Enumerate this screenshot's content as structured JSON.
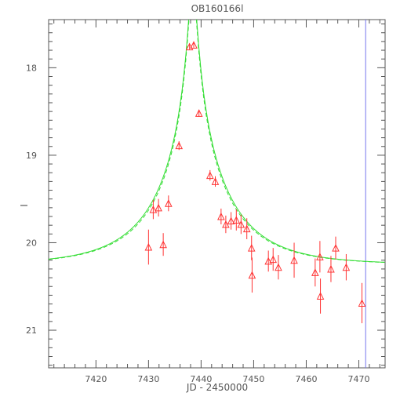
{
  "chart_data": {
    "type": "scatter",
    "title": "OB160166l",
    "xlabel": "JD - 2450000",
    "ylabel": "I",
    "xlim": [
      7411,
      7475
    ],
    "ylim": [
      21.43,
      17.45
    ],
    "y_inverted": true,
    "x_ticks": [
      7420,
      7430,
      7440,
      7450,
      7460,
      7470
    ],
    "x_tick_labels": [
      "7420",
      "7430",
      "7440",
      "7450",
      "7460",
      "7470"
    ],
    "y_ticks": [
      18,
      19,
      20,
      21
    ],
    "y_tick_labels": [
      "18",
      "19",
      "20",
      "21"
    ],
    "grid": false,
    "legend": "none",
    "vertical_marker_x": 7471.3,
    "series": [
      {
        "kind": "points",
        "marker": "triangle",
        "color": "#ff3333",
        "points": [
          {
            "x": 7430.0,
            "y": 20.05,
            "err": 0.2
          },
          {
            "x": 7430.9,
            "y": 19.62,
            "err": 0.11
          },
          {
            "x": 7431.9,
            "y": 19.6,
            "err": 0.1
          },
          {
            "x": 7432.8,
            "y": 20.02,
            "err": 0.13
          },
          {
            "x": 7433.8,
            "y": 19.55,
            "err": 0.09
          },
          {
            "x": 7435.8,
            "y": 18.89,
            "err": 0.05
          },
          {
            "x": 7437.8,
            "y": 17.76,
            "err": 0.03
          },
          {
            "x": 7438.6,
            "y": 17.74,
            "err": 0.03
          },
          {
            "x": 7439.6,
            "y": 18.52,
            "err": 0.04
          },
          {
            "x": 7441.7,
            "y": 19.23,
            "err": 0.06
          },
          {
            "x": 7442.7,
            "y": 19.3,
            "err": 0.06
          },
          {
            "x": 7443.8,
            "y": 19.7,
            "err": 0.09
          },
          {
            "x": 7444.7,
            "y": 19.79,
            "err": 0.1
          },
          {
            "x": 7445.7,
            "y": 19.75,
            "err": 0.1
          },
          {
            "x": 7446.7,
            "y": 19.74,
            "err": 0.12
          },
          {
            "x": 7447.6,
            "y": 19.79,
            "err": 0.11
          },
          {
            "x": 7448.7,
            "y": 19.84,
            "err": 0.12
          },
          {
            "x": 7449.6,
            "y": 20.06,
            "err": 0.14
          },
          {
            "x": 7449.7,
            "y": 20.37,
            "err": 0.2
          },
          {
            "x": 7452.8,
            "y": 20.21,
            "err": 0.12
          },
          {
            "x": 7453.7,
            "y": 20.19,
            "err": 0.13
          },
          {
            "x": 7454.7,
            "y": 20.28,
            "err": 0.14
          },
          {
            "x": 7457.7,
            "y": 20.2,
            "err": 0.2
          },
          {
            "x": 7461.7,
            "y": 20.34,
            "err": 0.16
          },
          {
            "x": 7462.6,
            "y": 20.16,
            "err": 0.18
          },
          {
            "x": 7462.7,
            "y": 20.61,
            "err": 0.2
          },
          {
            "x": 7464.7,
            "y": 20.3,
            "err": 0.15
          },
          {
            "x": 7465.6,
            "y": 20.06,
            "err": 0.13
          },
          {
            "x": 7467.6,
            "y": 20.28,
            "err": 0.15
          },
          {
            "x": 7470.6,
            "y": 20.69,
            "err": 0.23
          }
        ]
      },
      {
        "kind": "model",
        "style": "solid",
        "color": "#33dd33",
        "t0": 7438.4,
        "u0": 0.045,
        "tE": 14.0,
        "base": 20.25,
        "fs": 0.93
      },
      {
        "kind": "model",
        "style": "dashed",
        "color": "#33dd33",
        "t0": 7438.4,
        "u0": 0.045,
        "tE": 14.0,
        "base": 20.25,
        "fs": 0.88
      }
    ]
  }
}
